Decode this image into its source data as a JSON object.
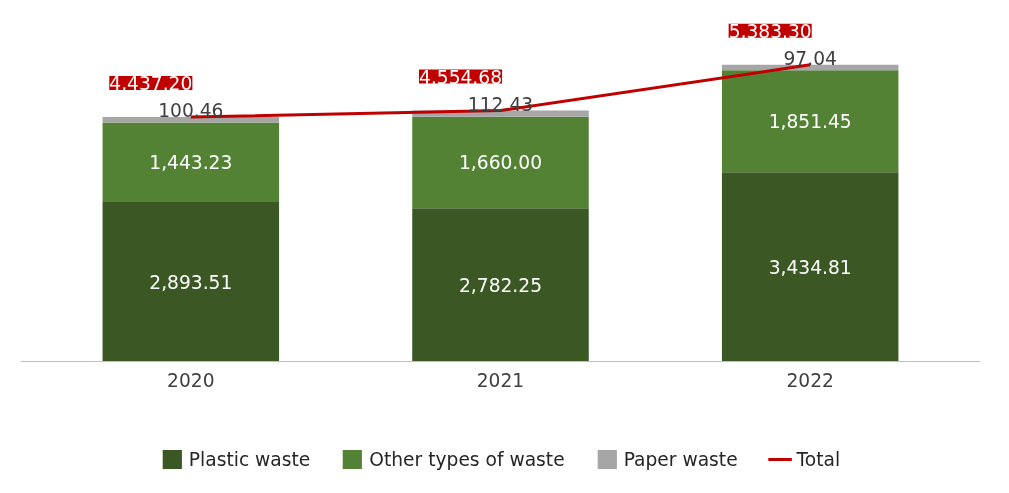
{
  "chart_data": {
    "type": "bar",
    "stacked": true,
    "categories": [
      "2020",
      "2021",
      "2022"
    ],
    "series": [
      {
        "name": "Plastic waste",
        "color": "#3a5724",
        "values": [
          2893.51,
          2782.25,
          3434.81
        ],
        "value_labels": [
          "2,893.51",
          "2,782.25",
          "3,434.81"
        ]
      },
      {
        "name": "Other types of waste",
        "color": "#548235",
        "values": [
          1443.23,
          1660.0,
          1851.45
        ],
        "value_labels": [
          "1,443.23",
          "1,660.00",
          "1,851.45"
        ]
      },
      {
        "name": "Paper waste",
        "color": "#a6a6a6",
        "values": [
          100.46,
          112.43,
          97.04
        ],
        "value_labels": [
          "100.46",
          "112.43",
          "97.04"
        ]
      },
      {
        "name": "Total",
        "type": "line",
        "color": "#c00000",
        "values": [
          4437.2,
          4554.68,
          5383.3
        ],
        "value_labels": [
          "4,437.20",
          "4,554.68",
          "5,383.30"
        ]
      }
    ],
    "legend": "bottom"
  }
}
